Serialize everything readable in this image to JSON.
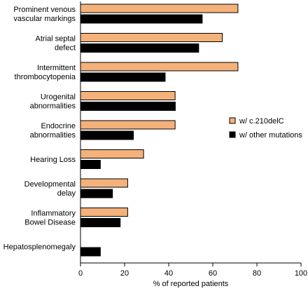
{
  "chart_data": {
    "type": "bar",
    "orientation": "horizontal",
    "categories": [
      [
        "Prominent venous",
        "vascular markings"
      ],
      [
        "Atrial septal",
        "defect"
      ],
      [
        "Intermittent",
        "thrombocytopenia"
      ],
      [
        "Urogenital",
        "abnormalities"
      ],
      [
        "Endocrine",
        "abnormalities"
      ],
      [
        "Hearing Loss"
      ],
      [
        "Developmental",
        "delay"
      ],
      [
        "Inflammatory",
        "Bowel Disease"
      ],
      [
        "Hepatosplenomegaly"
      ]
    ],
    "series": [
      {
        "name": "w/ c.210delC",
        "color": "#F4B27A",
        "values": [
          71.4,
          64.3,
          71.4,
          42.9,
          42.9,
          28.6,
          21.4,
          21.4,
          0
        ]
      },
      {
        "name": "w/ other mutations",
        "color": "#000000",
        "values": [
          55.2,
          53.6,
          38.4,
          43.0,
          24.0,
          9.0,
          14.5,
          18.0,
          9.0
        ]
      }
    ],
    "xlabel": "% of reported patients",
    "xlim": [
      0,
      100
    ],
    "xticks": [
      0,
      20,
      40,
      60,
      80,
      100
    ],
    "legend_position": "right",
    "grid": false
  }
}
